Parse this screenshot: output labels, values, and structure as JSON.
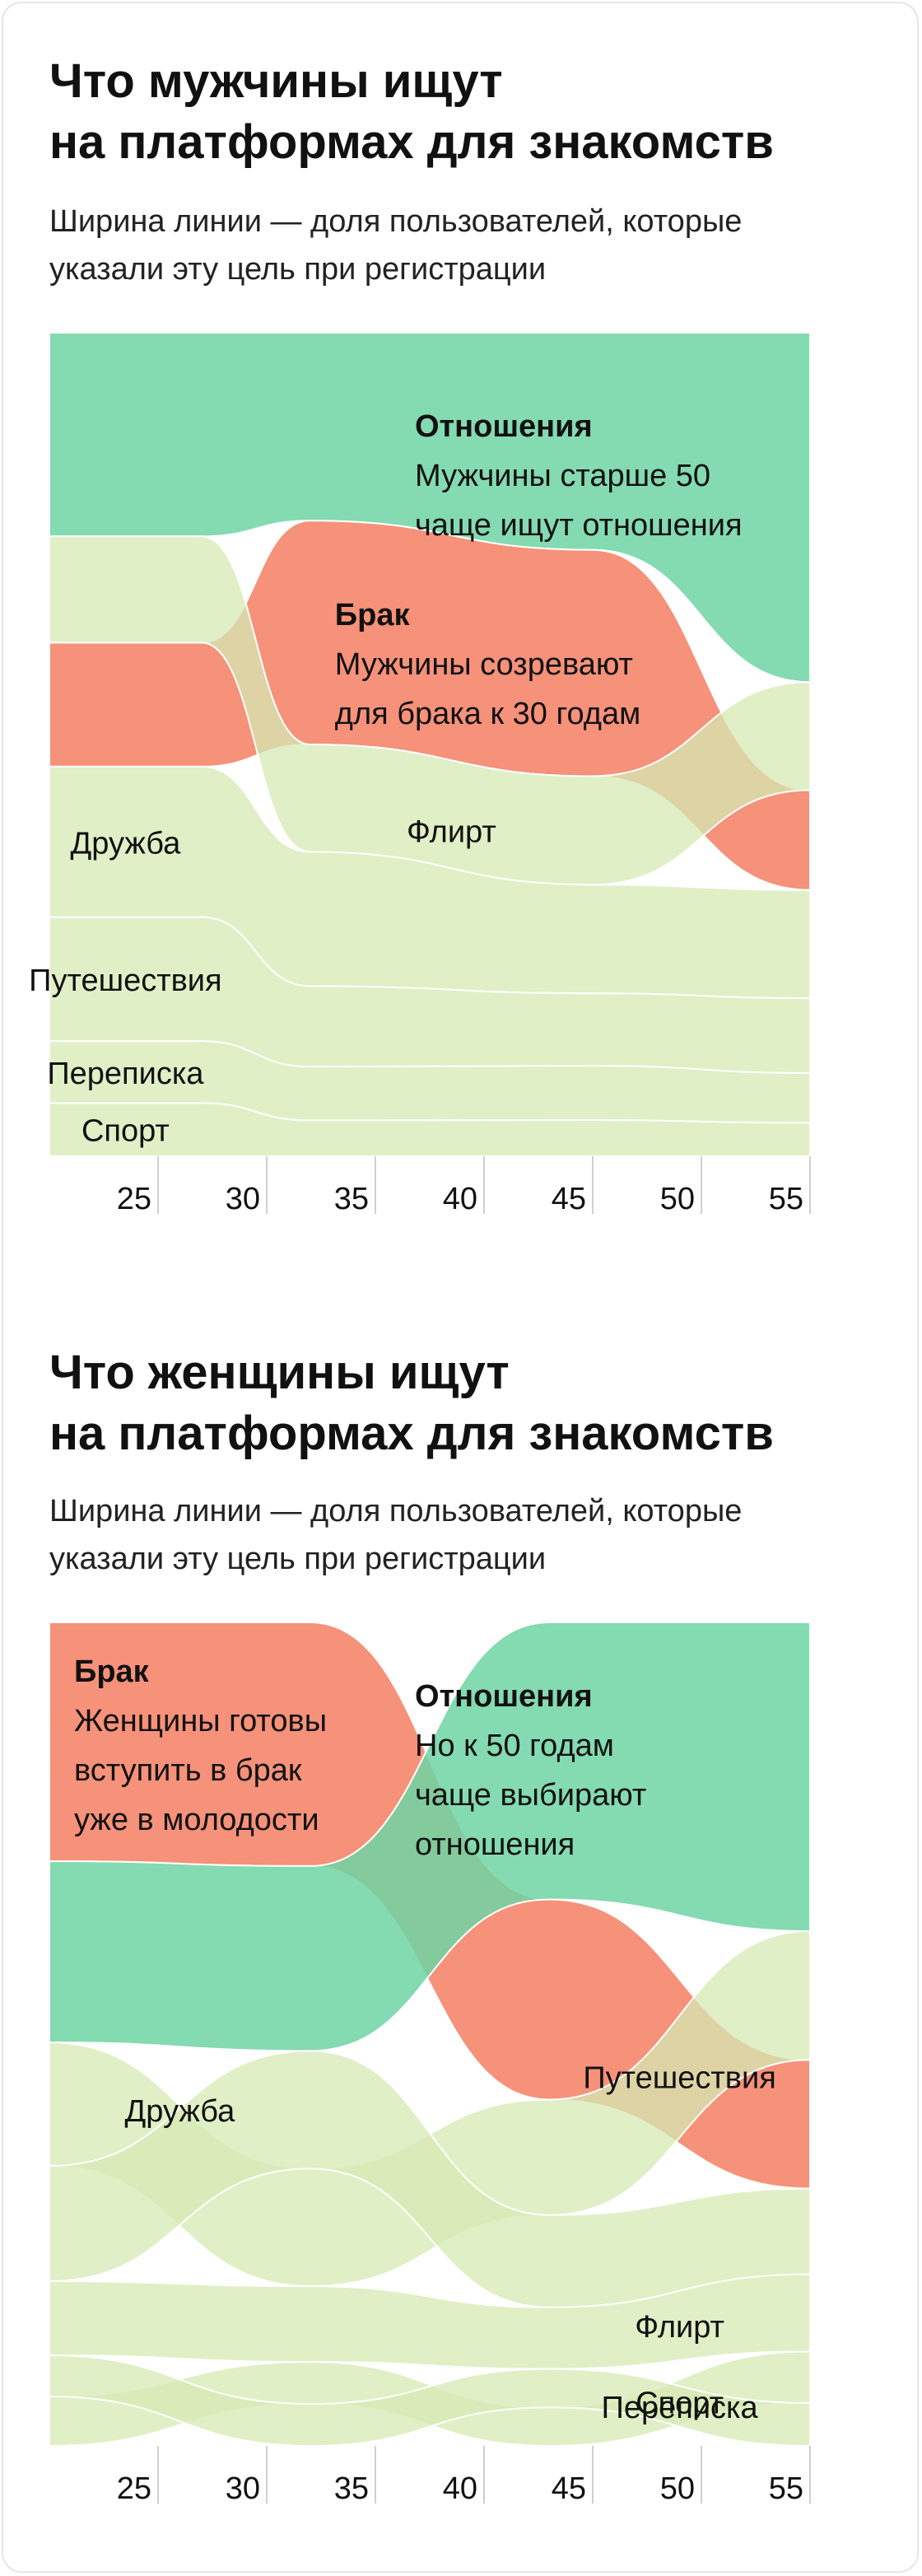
{
  "chart_data": [
    {
      "type": "area",
      "title": "Что мужчины ищут\nна платформах для знакомств",
      "subtitle": "Ширина линии — доля пользователей, которые\nуказали эту цель при регистрации",
      "x_ticks": [
        "25",
        "30",
        "35",
        "40",
        "45",
        "50",
        "55"
      ],
      "xlim": [
        20,
        55
      ],
      "colors": {
        "Отношения": "#6fd3a3",
        "Брак": "#f57e63",
        "other": "#d6eab3",
        "overlap": "#a9d87e"
      },
      "series": [
        {
          "name": "Отношения",
          "x": [
            20,
            27,
            32,
            45,
            55
          ],
          "share": [
            0.23,
            0.23,
            0.21,
            0.24,
            0.42
          ],
          "rank": [
            1,
            1,
            1,
            1,
            1
          ]
        },
        {
          "name": "Брак",
          "x": [
            20,
            27,
            32,
            45,
            55
          ],
          "share": [
            0.14,
            0.14,
            0.25,
            0.25,
            0.12
          ],
          "rank": [
            3,
            3,
            2,
            2,
            3
          ]
        },
        {
          "name": "Флирт",
          "x": [
            20,
            27,
            32,
            45,
            55
          ],
          "share": [
            0.12,
            0.12,
            0.12,
            0.12,
            0.13
          ],
          "rank": [
            2,
            2,
            3,
            3,
            2
          ]
        },
        {
          "name": "Дружба",
          "x": [
            20,
            27,
            32,
            45,
            55
          ],
          "share": [
            0.17,
            0.17,
            0.15,
            0.12,
            0.13
          ],
          "rank": [
            4,
            4,
            4,
            4,
            4
          ]
        },
        {
          "name": "Путешествия",
          "x": [
            20,
            27,
            32,
            45,
            55
          ],
          "share": [
            0.14,
            0.14,
            0.09,
            0.08,
            0.09
          ],
          "rank": [
            5,
            5,
            5,
            5,
            5
          ]
        },
        {
          "name": "Переписка",
          "x": [
            20,
            27,
            32,
            45,
            55
          ],
          "share": [
            0.07,
            0.07,
            0.06,
            0.06,
            0.06
          ],
          "rank": [
            6,
            6,
            6,
            6,
            6
          ]
        },
        {
          "name": "Спорт",
          "x": [
            20,
            27,
            32,
            45,
            55
          ],
          "share": [
            0.06,
            0.06,
            0.04,
            0.04,
            0.04
          ],
          "rank": [
            7,
            7,
            7,
            7,
            7
          ]
        }
      ],
      "annotations": [
        {
          "series": "Отношения",
          "head": "Отношения",
          "text": [
            "Мужчины старше 50",
            "чаще ищут отношения"
          ]
        },
        {
          "series": "Брак",
          "head": "Брак",
          "text": [
            "Мужчины созревают",
            "для брака к 30 годам"
          ]
        },
        {
          "series": "Флирт",
          "text": [
            "Флирт"
          ]
        },
        {
          "series": "Дружба",
          "text": [
            "Дружба"
          ]
        },
        {
          "series": "Путешествия",
          "text": [
            "Путешествия"
          ]
        },
        {
          "series": "Переписка",
          "text": [
            "Переписка"
          ]
        },
        {
          "series": "Спорт",
          "text": [
            "Спорт"
          ]
        }
      ]
    },
    {
      "type": "area",
      "title": "Что женщины ищут\nна платформах для знакомств",
      "subtitle": "Ширина линии — доля пользователей, которые\nуказали эту цель при регистрации",
      "x_ticks": [
        "25",
        "30",
        "35",
        "40",
        "45",
        "50",
        "55"
      ],
      "xlim": [
        20,
        55
      ],
      "colors": {
        "Отношения": "#6fd3a3",
        "Брак": "#f57e63",
        "other": "#d6eab3",
        "overlap": "#a9d87e"
      },
      "series": [
        {
          "name": "Брак",
          "x": [
            20,
            32,
            43,
            55
          ],
          "share": [
            0.29,
            0.29,
            0.26,
            0.15
          ],
          "rank": [
            1,
            1,
            2,
            3
          ]
        },
        {
          "name": "Отношения",
          "x": [
            20,
            32,
            43,
            55
          ],
          "share": [
            0.22,
            0.22,
            0.36,
            0.36
          ],
          "rank": [
            2,
            2,
            1,
            1
          ]
        },
        {
          "name": "Путешествия",
          "x": [
            20,
            32,
            43,
            55
          ],
          "share": [
            0.15,
            0.14,
            0.15,
            0.15
          ],
          "rank": [
            3,
            4,
            3,
            2
          ]
        },
        {
          "name": "Дружба",
          "x": [
            20,
            32,
            43,
            55
          ],
          "share": [
            0.14,
            0.14,
            0.12,
            0.1
          ],
          "rank": [
            4,
            3,
            4,
            4
          ]
        },
        {
          "name": "Флирт",
          "x": [
            20,
            32,
            43,
            55
          ],
          "share": [
            0.09,
            0.09,
            0.08,
            0.09
          ],
          "rank": [
            5,
            5,
            5,
            5
          ]
        },
        {
          "name": "Спорт",
          "x": [
            20,
            32,
            43,
            55
          ],
          "share": [
            0.06,
            0.05,
            0.05,
            0.06
          ],
          "rank": [
            7,
            6,
            7,
            6
          ]
        },
        {
          "name": "Переписка",
          "x": [
            20,
            32,
            43,
            55
          ],
          "share": [
            0.05,
            0.05,
            0.05,
            0.05
          ],
          "rank": [
            6,
            7,
            6,
            7
          ]
        }
      ],
      "annotations": [
        {
          "series": "Брак",
          "head": "Брак",
          "text": [
            "Женщины готовы",
            "вступить в брак",
            "уже в молодости"
          ]
        },
        {
          "series": "Отношения",
          "head": "Отношения",
          "text": [
            "Но к 50 годам",
            "чаще выбирают",
            "отношения"
          ]
        },
        {
          "series": "Путешествия",
          "text": [
            "Путешествия"
          ]
        },
        {
          "series": "Дружба",
          "text": [
            "Дружба"
          ]
        },
        {
          "series": "Флирт",
          "text": [
            "Флирт"
          ]
        },
        {
          "series": "Спорт",
          "text": [
            "Спорт"
          ]
        },
        {
          "series": "Переписка",
          "text": [
            "Переписка"
          ]
        }
      ]
    }
  ]
}
